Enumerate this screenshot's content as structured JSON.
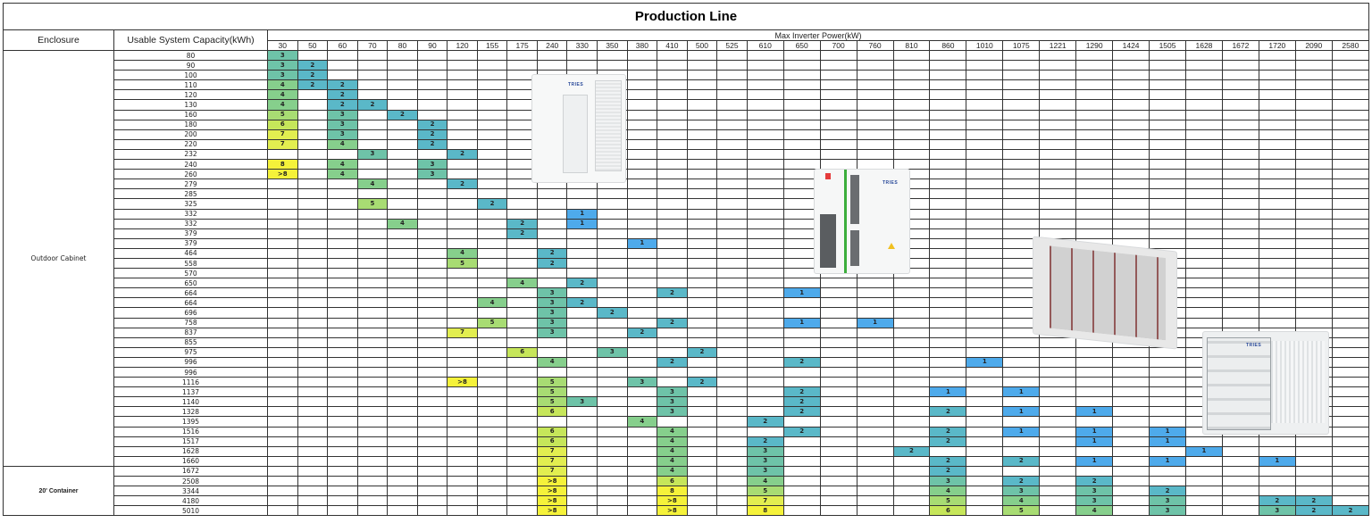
{
  "title": "Production Line",
  "headers": {
    "enclosure": "Enclosure",
    "capacity": "Usable System Capacity(kWh)",
    "power": "Max Inverter Power(kW)"
  },
  "power_columns": [
    "30",
    "50",
    "60",
    "70",
    "80",
    "90",
    "120",
    "155",
    "175",
    "240",
    "330",
    "350",
    "380",
    "410",
    "500",
    "525",
    "610",
    "650",
    "700",
    "760",
    "810",
    "860",
    "1010",
    "1075",
    "1221",
    "1290",
    "1424",
    "1505",
    "1628",
    "1672",
    "1720",
    "2090",
    "2580"
  ],
  "color_scale": {
    "1": "#4eaaeb",
    "2": "#5ab8c8",
    "3": "#6ec3a8",
    "4": "#86cf8c",
    "5": "#a8dc73",
    "6": "#c6e65a",
    "7": "#e2ee50",
    "8": "#f5f23a",
    ">8": "#f5f23a"
  },
  "groups": [
    {
      "enclosure": "Outdoor Cabinet",
      "rows": [
        {
          "capacity": "80",
          "cells": {
            "30": "3"
          }
        },
        {
          "capacity": "90",
          "cells": {
            "30": "3",
            "50": "2"
          }
        },
        {
          "capacity": "100",
          "cells": {
            "30": "3",
            "50": "2"
          }
        },
        {
          "capacity": "110",
          "cells": {
            "30": "4",
            "50": "2",
            "60": "2"
          }
        },
        {
          "capacity": "120",
          "cells": {
            "30": "4",
            "60": "2"
          }
        },
        {
          "capacity": "130",
          "cells": {
            "30": "4",
            "60": "2",
            "70": "2"
          }
        },
        {
          "capacity": "160",
          "cells": {
            "30": "5",
            "60": "3",
            "80": "2"
          }
        },
        {
          "capacity": "180",
          "cells": {
            "30": "6",
            "60": "3",
            "90": "2"
          }
        },
        {
          "capacity": "200",
          "cells": {
            "30": "7",
            "60": "3",
            "90": "2"
          }
        },
        {
          "capacity": "220",
          "cells": {
            "30": "7",
            "60": "4",
            "90": "2"
          }
        },
        {
          "capacity": "232",
          "cells": {
            "70": "3",
            "120": "2"
          }
        },
        {
          "capacity": "240",
          "cells": {
            "30": "8",
            "60": "4",
            "90": "3"
          }
        },
        {
          "capacity": "260",
          "cells": {
            "30": ">8",
            "60": "4",
            "90": "3"
          }
        },
        {
          "capacity": "279",
          "cells": {
            "70": "4",
            "120": "2"
          }
        },
        {
          "capacity": "285",
          "cells": {}
        },
        {
          "capacity": "325",
          "cells": {
            "70": "5",
            "155": "2"
          }
        },
        {
          "capacity": "332",
          "cells": {
            "330": "1"
          }
        },
        {
          "capacity": "332",
          "cells": {
            "80": "4",
            "175": "2",
            "330": "1"
          }
        },
        {
          "capacity": "379",
          "cells": {
            "175": "2"
          }
        },
        {
          "capacity": "379",
          "cells": {
            "380": "1"
          }
        },
        {
          "capacity": "464",
          "cells": {
            "120": "4",
            "240": "2"
          }
        },
        {
          "capacity": "558",
          "cells": {
            "120": "5",
            "240": "2"
          }
        },
        {
          "capacity": "570",
          "cells": {}
        },
        {
          "capacity": "650",
          "cells": {
            "175": "4",
            "330": "2"
          }
        },
        {
          "capacity": "664",
          "cells": {
            "240": "3",
            "410": "2",
            "650": "1"
          }
        },
        {
          "capacity": "664",
          "cells": {
            "155": "4",
            "240": "3",
            "330": "2"
          }
        },
        {
          "capacity": "696",
          "cells": {
            "240": "3",
            "350": "2"
          }
        },
        {
          "capacity": "758",
          "cells": {
            "155": "5",
            "240": "3",
            "410": "2",
            "650": "1",
            "760": "1"
          }
        },
        {
          "capacity": "837",
          "cells": {
            "120": "7",
            "240": "3",
            "380": "2"
          }
        },
        {
          "capacity": "855",
          "cells": {}
        },
        {
          "capacity": "975",
          "cells": {
            "175": "6",
            "350": "3",
            "500": "2"
          }
        },
        {
          "capacity": "996",
          "cells": {
            "240": "4",
            "410": "2",
            "650": "2",
            "1010": "1"
          }
        },
        {
          "capacity": "996",
          "cells": {}
        },
        {
          "capacity": "1116",
          "cells": {
            "120": ">8",
            "240": "5",
            "380": "3",
            "500": "2"
          }
        },
        {
          "capacity": "1137",
          "cells": {
            "240": "5",
            "410": "3",
            "650": "2",
            "860": "1",
            "1075": "1"
          }
        },
        {
          "capacity": "1140",
          "cells": {
            "240": "5",
            "330": "3",
            "410": "3",
            "650": "2"
          }
        },
        {
          "capacity": "1328",
          "cells": {
            "240": "6",
            "410": "3",
            "650": "2",
            "860": "2",
            "1075": "1",
            "1290": "1"
          }
        },
        {
          "capacity": "1395",
          "cells": {
            "380": "4",
            "610": "2"
          }
        },
        {
          "capacity": "1516",
          "cells": {
            "240": "6",
            "410": "4",
            "650": "2",
            "860": "2",
            "1075": "1",
            "1290": "1",
            "1505": "1"
          }
        },
        {
          "capacity": "1517",
          "cells": {
            "240": "6",
            "410": "4",
            "610": "2",
            "860": "2",
            "1290": "1",
            "1505": "1"
          }
        },
        {
          "capacity": "1628",
          "cells": {
            "240": "7",
            "410": "4",
            "610": "3",
            "810": "2",
            "1628": "1"
          }
        },
        {
          "capacity": "1660",
          "cells": {
            "240": "7",
            "410": "4",
            "610": "3",
            "860": "2",
            "1075": "2",
            "1290": "1",
            "1505": "1",
            "1720": "1"
          }
        }
      ]
    },
    {
      "enclosure": "20' Container",
      "rows": [
        {
          "capacity": "1672",
          "cells": {
            "240": "7",
            "410": "4",
            "610": "3",
            "860": "2"
          }
        },
        {
          "capacity": "2508",
          "cells": {
            "240": ">8",
            "410": "6",
            "610": "4",
            "860": "3",
            "1075": "2",
            "1290": "2"
          }
        },
        {
          "capacity": "3344",
          "cells": {
            "240": ">8",
            "410": "8",
            "610": "5",
            "860": "4",
            "1075": "3",
            "1290": "3",
            "1505": "2"
          }
        },
        {
          "capacity": "4180",
          "cells": {
            "240": ">8",
            "410": ">8",
            "610": "7",
            "860": "5",
            "1075": "4",
            "1290": "3",
            "1505": "3",
            "1720": "2",
            "2090": "2"
          }
        },
        {
          "capacity": "5010",
          "cells": {
            "240": ">8",
            "410": ">8",
            "610": "8",
            "860": "6",
            "1075": "5",
            "1290": "4",
            "1505": "3",
            "1720": "3",
            "2090": "2",
            "2580": "2"
          }
        }
      ]
    }
  ],
  "product_images": [
    {
      "name": "outdoor-cabinet-small",
      "brand": "TRIES"
    },
    {
      "name": "outdoor-cabinet-large",
      "brand": "TRIES"
    },
    {
      "name": "container-cutaway"
    },
    {
      "name": "20ft-container",
      "brand": "TRIES"
    }
  ]
}
